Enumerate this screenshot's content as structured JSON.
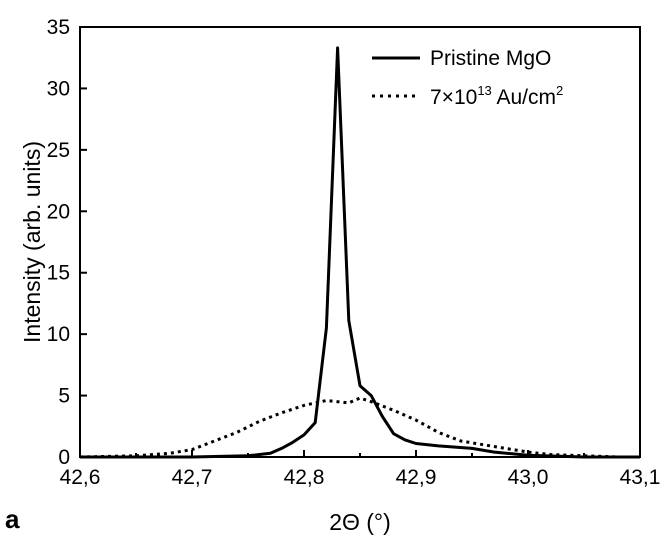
{
  "chart_data": {
    "type": "line",
    "xlabel": "2Θ (°)",
    "ylabel": "Intensity (arb. units)",
    "panel_label": "a",
    "xlim": [
      42.6,
      43.1
    ],
    "ylim": [
      0,
      35
    ],
    "xticks": [
      42.6,
      42.7,
      42.8,
      42.9,
      43.0,
      43.1
    ],
    "xtick_labels": [
      "42,6",
      "42,7",
      "42,8",
      "42,9",
      "43,0",
      "43,1"
    ],
    "yticks": [
      0,
      5,
      10,
      15,
      20,
      25,
      30,
      35
    ],
    "ytick_labels": [
      "0",
      "5",
      "10",
      "15",
      "20",
      "25",
      "30",
      "35"
    ],
    "legend_position": "top-right",
    "series": [
      {
        "name": "Pristine MgO",
        "style": "solid",
        "color": "#000000",
        "x": [
          42.6,
          42.7,
          42.75,
          42.77,
          42.78,
          42.79,
          42.8,
          42.81,
          42.82,
          42.83,
          42.84,
          42.85,
          42.86,
          42.87,
          42.88,
          42.89,
          42.9,
          42.92,
          42.95,
          42.97,
          43.0,
          43.05,
          43.1
        ],
        "y": [
          0,
          0,
          0.1,
          0.3,
          0.7,
          1.2,
          1.8,
          2.8,
          10.5,
          33.3,
          11.1,
          5.8,
          5.0,
          3.3,
          1.9,
          1.4,
          1.1,
          0.9,
          0.7,
          0.4,
          0.15,
          0,
          0
        ]
      },
      {
        "name": "7×10",
        "name_sup": "13",
        "name_suffix": " Au/cm",
        "name_suffix_sup": "2",
        "style": "dotted",
        "color": "#000000",
        "x": [
          42.6,
          42.65,
          42.68,
          42.7,
          42.72,
          42.74,
          42.76,
          42.78,
          42.8,
          42.82,
          42.83,
          42.84,
          42.85,
          42.86,
          42.88,
          42.9,
          42.92,
          42.94,
          42.96,
          42.98,
          43.0,
          43.02,
          43.05,
          43.08,
          43.1
        ],
        "y": [
          0,
          0.1,
          0.3,
          0.6,
          1.3,
          2.0,
          2.9,
          3.6,
          4.2,
          4.6,
          4.5,
          4.4,
          4.8,
          4.5,
          3.8,
          3.0,
          2.0,
          1.3,
          1.0,
          0.7,
          0.4,
          0.2,
          0.1,
          0,
          0
        ]
      }
    ]
  }
}
